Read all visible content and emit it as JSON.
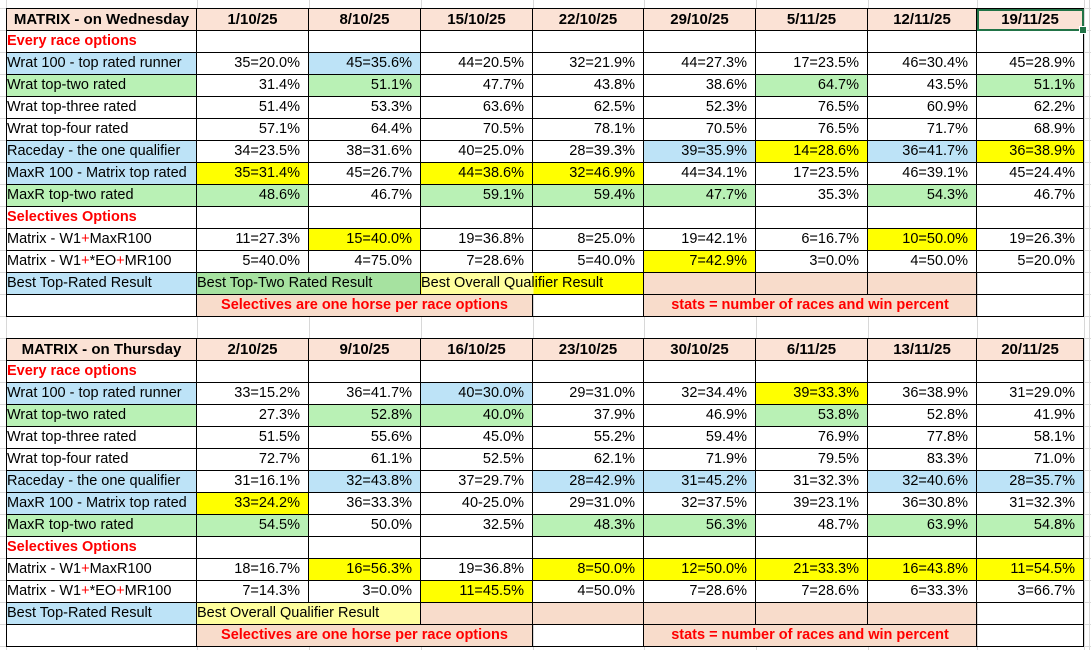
{
  "app": {
    "kind": "spreadsheet"
  },
  "colors": {
    "header_peach": "#FBE2D5",
    "highlight_blue": "#BDE3F7",
    "highlight_green": "#B9F1B5",
    "highlight_yellow": "#FFFF00",
    "pale_yellow": "#FFFF9E",
    "green_band": "#A6E2A0",
    "pink_band": "#F8DCCB",
    "red_text": "#FF0000",
    "selection_green": "#217346",
    "grid_gray": "#D8D8D8",
    "cell_border": "#000000"
  },
  "tables": [
    {
      "title": "MATRIX - on Wednesday",
      "dates": [
        "1/10/25",
        "8/10/25",
        "15/10/25",
        "22/10/25",
        "29/10/25",
        "5/11/25",
        "12/11/25",
        "19/11/25"
      ],
      "selected_date_index": 7,
      "rows": [
        {
          "type": "section",
          "label": "Every race options"
        },
        {
          "type": "data",
          "label": "Wrat 100 - top rated runner",
          "labelFill": "blue",
          "cells": [
            [
              "35=20.0%",
              ""
            ],
            [
              "45=35.6%",
              "blue"
            ],
            [
              "44=20.5%",
              ""
            ],
            [
              "32=21.9%",
              ""
            ],
            [
              "44=27.3%",
              ""
            ],
            [
              "17=23.5%",
              ""
            ],
            [
              "46=30.4%",
              ""
            ],
            [
              "45=28.9%",
              ""
            ]
          ]
        },
        {
          "type": "data",
          "label": "Wrat top-two rated",
          "labelFill": "green",
          "cells": [
            [
              "31.4%",
              ""
            ],
            [
              "51.1%",
              "green"
            ],
            [
              "47.7%",
              ""
            ],
            [
              "43.8%",
              ""
            ],
            [
              "38.6%",
              ""
            ],
            [
              "64.7%",
              "green"
            ],
            [
              "43.5%",
              ""
            ],
            [
              "51.1%",
              "green"
            ]
          ]
        },
        {
          "type": "data",
          "label": "Wrat top-three rated",
          "labelFill": "",
          "cells": [
            [
              "51.4%",
              ""
            ],
            [
              "53.3%",
              ""
            ],
            [
              "63.6%",
              ""
            ],
            [
              "62.5%",
              ""
            ],
            [
              "52.3%",
              ""
            ],
            [
              "76.5%",
              ""
            ],
            [
              "60.9%",
              ""
            ],
            [
              "62.2%",
              ""
            ]
          ]
        },
        {
          "type": "data",
          "label": "Wrat top-four rated",
          "labelFill": "",
          "cells": [
            [
              "57.1%",
              ""
            ],
            [
              "64.4%",
              ""
            ],
            [
              "70.5%",
              ""
            ],
            [
              "78.1%",
              ""
            ],
            [
              "70.5%",
              ""
            ],
            [
              "76.5%",
              ""
            ],
            [
              "71.7%",
              ""
            ],
            [
              "68.9%",
              ""
            ]
          ]
        },
        {
          "type": "data",
          "label": "Raceday - the one qualifier",
          "labelFill": "blue",
          "cells": [
            [
              "34=23.5%",
              ""
            ],
            [
              "38=31.6%",
              ""
            ],
            [
              "40=25.0%",
              ""
            ],
            [
              "28=39.3%",
              ""
            ],
            [
              "39=35.9%",
              "blue"
            ],
            [
              "14=28.6%",
              "yellow"
            ],
            [
              "36=41.7%",
              "blue"
            ],
            [
              "36=38.9%",
              "yellow"
            ]
          ]
        },
        {
          "type": "data",
          "label": "MaxR 100 - Matrix top rated",
          "labelFill": "blue",
          "cells": [
            [
              "35=31.4%",
              "yellow"
            ],
            [
              "45=26.7%",
              ""
            ],
            [
              "44=38.6%",
              "yellow"
            ],
            [
              "32=46.9%",
              "yellow"
            ],
            [
              "44=34.1%",
              ""
            ],
            [
              "17=23.5%",
              ""
            ],
            [
              "46=39.1%",
              ""
            ],
            [
              "45=24.4%",
              ""
            ]
          ]
        },
        {
          "type": "data",
          "label": "MaxR top-two rated",
          "labelFill": "green",
          "cells": [
            [
              "48.6%",
              "green"
            ],
            [
              "46.7%",
              ""
            ],
            [
              "59.1%",
              "green"
            ],
            [
              "59.4%",
              "green"
            ],
            [
              "47.7%",
              "green"
            ],
            [
              "35.3%",
              ""
            ],
            [
              "54.3%",
              "green"
            ],
            [
              "46.7%",
              ""
            ]
          ]
        },
        {
          "type": "section",
          "label": "Selectives Options"
        },
        {
          "type": "data",
          "label": "Matrix - W1+MaxR100",
          "labelFill": "",
          "label_parts": [
            {
              "t": "Matrix - W1"
            },
            {
              "t": "+",
              "red": true
            },
            {
              "t": "MaxR100"
            }
          ],
          "cells": [
            [
              "11=27.3%",
              ""
            ],
            [
              "15=40.0%",
              "yellow"
            ],
            [
              "19=36.8%",
              ""
            ],
            [
              "8=25.0%",
              ""
            ],
            [
              "19=42.1%",
              ""
            ],
            [
              "6=16.7%",
              ""
            ],
            [
              "10=50.0%",
              "yellow"
            ],
            [
              "19=26.3%",
              ""
            ]
          ]
        },
        {
          "type": "data",
          "label": "Matrix - W1+*EO+MR100",
          "labelFill": "",
          "label_parts": [
            {
              "t": "Matrix - W1"
            },
            {
              "t": "+",
              "red": true
            },
            {
              "t": "*EO"
            },
            {
              "t": "+",
              "red": true
            },
            {
              "t": "MR100"
            }
          ],
          "cells": [
            [
              "5=40.0%",
              ""
            ],
            [
              "4=75.0%",
              ""
            ],
            [
              "7=28.6%",
              ""
            ],
            [
              "5=40.0%",
              ""
            ],
            [
              "7=42.9%",
              "yellow"
            ],
            [
              "3=0.0%",
              ""
            ],
            [
              "4=50.0%",
              ""
            ],
            [
              "5=20.0%",
              ""
            ]
          ]
        }
      ],
      "footer": {
        "best_label": "Best Top-Rated Result",
        "bands": [
          {
            "text": "Best Top-Two Rated Result",
            "span": 2,
            "fill": "greenband"
          },
          {
            "text": "Best Overall Qualifier Result",
            "span": 2,
            "fill": "split"
          },
          {
            "text": "",
            "span": 1,
            "fill": "pink"
          },
          {
            "text": "",
            "span": 1,
            "fill": "pink"
          },
          {
            "text": "",
            "span": 1,
            "fill": "pink"
          },
          {
            "text": "",
            "span": 1,
            "fill": "none"
          }
        ],
        "notes": [
          {
            "text": "",
            "span": 1,
            "fill": "none"
          },
          {
            "text": "Selectives are one horse per race options",
            "span": 3,
            "fill": "pinkband"
          },
          {
            "text": "",
            "span": 1,
            "fill": "none"
          },
          {
            "text": "stats = number of races and win percent",
            "span": 3,
            "fill": "pinkband"
          },
          {
            "text": "",
            "span": 1,
            "fill": "none"
          }
        ]
      }
    },
    {
      "title": "MATRIX - on Thursday",
      "dates": [
        "2/10/25",
        "9/10/25",
        "16/10/25",
        "23/10/25",
        "30/10/25",
        "6/11/25",
        "13/11/25",
        "20/11/25"
      ],
      "selected_date_index": -1,
      "rows": [
        {
          "type": "section",
          "label": "Every race options"
        },
        {
          "type": "data",
          "label": "Wrat 100 - top rated runner",
          "labelFill": "blue",
          "cells": [
            [
              "33=15.2%",
              ""
            ],
            [
              "36=41.7%",
              ""
            ],
            [
              "40=30.0%",
              "blue"
            ],
            [
              "29=31.0%",
              ""
            ],
            [
              "32=34.4%",
              ""
            ],
            [
              "39=33.3%",
              "yellow"
            ],
            [
              "36=38.9%",
              ""
            ],
            [
              "31=29.0%",
              ""
            ]
          ]
        },
        {
          "type": "data",
          "label": "Wrat top-two rated",
          "labelFill": "green",
          "cells": [
            [
              "27.3%",
              ""
            ],
            [
              "52.8%",
              "green"
            ],
            [
              "40.0%",
              "green"
            ],
            [
              "37.9%",
              ""
            ],
            [
              "46.9%",
              ""
            ],
            [
              "53.8%",
              "green"
            ],
            [
              "52.8%",
              ""
            ],
            [
              "41.9%",
              ""
            ]
          ]
        },
        {
          "type": "data",
          "label": "Wrat top-three rated",
          "labelFill": "",
          "cells": [
            [
              "51.5%",
              ""
            ],
            [
              "55.6%",
              ""
            ],
            [
              "45.0%",
              ""
            ],
            [
              "55.2%",
              ""
            ],
            [
              "59.4%",
              ""
            ],
            [
              "76.9%",
              ""
            ],
            [
              "77.8%",
              ""
            ],
            [
              "58.1%",
              ""
            ]
          ]
        },
        {
          "type": "data",
          "label": "Wrat top-four rated",
          "labelFill": "",
          "cells": [
            [
              "72.7%",
              ""
            ],
            [
              "61.1%",
              ""
            ],
            [
              "52.5%",
              ""
            ],
            [
              "62.1%",
              ""
            ],
            [
              "71.9%",
              ""
            ],
            [
              "79.5%",
              ""
            ],
            [
              "83.3%",
              ""
            ],
            [
              "71.0%",
              ""
            ]
          ]
        },
        {
          "type": "data",
          "label": "Raceday - the one qualifier",
          "labelFill": "blue",
          "cells": [
            [
              "31=16.1%",
              ""
            ],
            [
              "32=43.8%",
              "blue"
            ],
            [
              "37=29.7%",
              ""
            ],
            [
              "28=42.9%",
              "blue"
            ],
            [
              "31=45.2%",
              "blue"
            ],
            [
              "31=32.3%",
              ""
            ],
            [
              "32=40.6%",
              "blue"
            ],
            [
              "28=35.7%",
              "blue"
            ]
          ]
        },
        {
          "type": "data",
          "label": "MaxR 100 - Matrix top rated",
          "labelFill": "blue",
          "cells": [
            [
              "33=24.2%",
              "yellow"
            ],
            [
              "36=33.3%",
              ""
            ],
            [
              "40-25.0%",
              ""
            ],
            [
              "29=31.0%",
              ""
            ],
            [
              "32=37.5%",
              ""
            ],
            [
              "39=23.1%",
              ""
            ],
            [
              "36=30.8%",
              ""
            ],
            [
              "31=32.3%",
              ""
            ]
          ]
        },
        {
          "type": "data",
          "label": "MaxR top-two rated",
          "labelFill": "green",
          "cells": [
            [
              "54.5%",
              "green"
            ],
            [
              "50.0%",
              ""
            ],
            [
              "32.5%",
              ""
            ],
            [
              "48.3%",
              "green"
            ],
            [
              "56.3%",
              "green"
            ],
            [
              "48.7%",
              ""
            ],
            [
              "63.9%",
              "green"
            ],
            [
              "54.8%",
              "green"
            ]
          ]
        },
        {
          "type": "section",
          "label": "Selectives Options"
        },
        {
          "type": "data",
          "label": "Matrix - W1+MaxR100",
          "labelFill": "",
          "label_parts": [
            {
              "t": "Matrix - W1"
            },
            {
              "t": "+",
              "red": true
            },
            {
              "t": "MaxR100"
            }
          ],
          "cells": [
            [
              "18=16.7%",
              ""
            ],
            [
              "16=56.3%",
              "yellow"
            ],
            [
              "19=36.8%",
              ""
            ],
            [
              "8=50.0%",
              "yellow"
            ],
            [
              "12=50.0%",
              "yellow"
            ],
            [
              "21=33.3%",
              "yellow"
            ],
            [
              "16=43.8%",
              "yellow"
            ],
            [
              "11=54.5%",
              "yellow"
            ]
          ]
        },
        {
          "type": "data",
          "label": "Matrix - W1+*EO+MR100",
          "labelFill": "",
          "label_parts": [
            {
              "t": "Matrix - W1"
            },
            {
              "t": "+",
              "red": true
            },
            {
              "t": "*EO"
            },
            {
              "t": "+",
              "red": true
            },
            {
              "t": "MR100"
            }
          ],
          "cells": [
            [
              "7=14.3%",
              ""
            ],
            [
              "3=0.0%",
              ""
            ],
            [
              "11=45.5%",
              "yellow"
            ],
            [
              "4=50.0%",
              ""
            ],
            [
              "7=28.6%",
              ""
            ],
            [
              "7=28.6%",
              ""
            ],
            [
              "6=33.3%",
              ""
            ],
            [
              "3=66.7%",
              ""
            ]
          ]
        }
      ],
      "footer": {
        "best_label": "Best Top-Rated Result",
        "bands": [
          {
            "text": "Best Overall Qualifier Result",
            "span": 2,
            "fill": "paleyellow"
          },
          {
            "text": "",
            "span": 1,
            "fill": "pink"
          },
          {
            "text": "",
            "span": 1,
            "fill": "pink"
          },
          {
            "text": "",
            "span": 1,
            "fill": "pink"
          },
          {
            "text": "",
            "span": 1,
            "fill": "pink"
          },
          {
            "text": "",
            "span": 1,
            "fill": "pink"
          },
          {
            "text": "",
            "span": 1,
            "fill": "none"
          }
        ],
        "notes": [
          {
            "text": "",
            "span": 1,
            "fill": "none"
          },
          {
            "text": "Selectives are one horse per race options",
            "span": 3,
            "fill": "pinkband"
          },
          {
            "text": "",
            "span": 1,
            "fill": "none"
          },
          {
            "text": "stats = number of races and win percent",
            "span": 3,
            "fill": "pinkband"
          },
          {
            "text": "",
            "span": 1,
            "fill": "none"
          }
        ]
      }
    }
  ]
}
